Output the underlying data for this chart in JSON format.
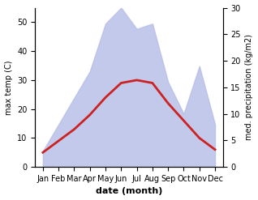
{
  "months": [
    "Jan",
    "Feb",
    "Mar",
    "Apr",
    "May",
    "Jun",
    "Jul",
    "Aug",
    "Sep",
    "Oct",
    "Nov",
    "Dec"
  ],
  "temp_max": [
    5,
    9,
    13,
    18,
    24,
    29,
    30,
    29,
    22,
    16,
    10,
    6
  ],
  "precip": [
    3,
    8,
    13,
    18,
    27,
    30,
    26,
    27,
    16,
    10,
    19,
    8
  ],
  "fill_color": "#b8c0e8",
  "line_color": "#cc2222",
  "xlabel": "date (month)",
  "ylabel_left": "max temp (C)",
  "ylabel_right": "med. precipitation (kg/m2)",
  "ylim_left": [
    0,
    55
  ],
  "ylim_right": [
    0,
    30
  ],
  "temp_yticks": [
    0,
    10,
    20,
    30,
    40,
    50
  ],
  "precip_yticks": [
    0,
    5,
    10,
    15,
    20,
    25,
    30
  ]
}
